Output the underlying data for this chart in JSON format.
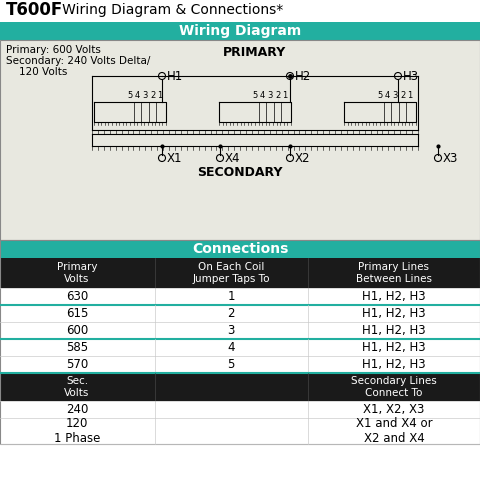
{
  "title_bold": "T600F",
  "title_rest": "   Wiring Diagram & Connections*",
  "wiring_header": "Wiring Diagram",
  "connections_header": "Connections",
  "primary_label": "PRIMARY",
  "secondary_label": "SECONDARY",
  "primary_info_line1": "Primary: 600 Volts",
  "primary_info_line2": "Secondary: 240 Volts Delta/",
  "primary_info_line3": "    120 Volts",
  "header_bg": "#22AFA0",
  "header_text": "#ffffff",
  "table_header_bg": "#1a1a1a",
  "table_header_text": "#ffffff",
  "teal_line_color": "#22AFA0",
  "col_headers": [
    "Primary\nVolts",
    "On Each Coil\nJumper Taps To",
    "Primary Lines\nBetween Lines"
  ],
  "primary_rows": [
    [
      "630",
      "1",
      "H1, H2, H3"
    ],
    [
      "615",
      "2",
      "H1, H2, H3"
    ],
    [
      "600",
      "3",
      "H1, H2, H3"
    ],
    [
      "585",
      "4",
      "H1, H2, H3"
    ],
    [
      "570",
      "5",
      "H1, H2, H3"
    ]
  ],
  "teal_after_rows": [
    1,
    3
  ],
  "sec_header_col0": "Sec.\nVolts",
  "sec_header_col2": "Secondary Lines\nConnect To",
  "sec_rows": [
    [
      "240",
      "",
      "X1, X2, X3"
    ],
    [
      "120\n1 Phase",
      "",
      "X1 and X4 or\nX2 and X4"
    ]
  ],
  "H_labels": [
    "H1",
    "H2",
    "H3"
  ],
  "X_labels": [
    "X1",
    "X4",
    "X2",
    "X3"
  ],
  "bg_color": "#e8e8e0"
}
